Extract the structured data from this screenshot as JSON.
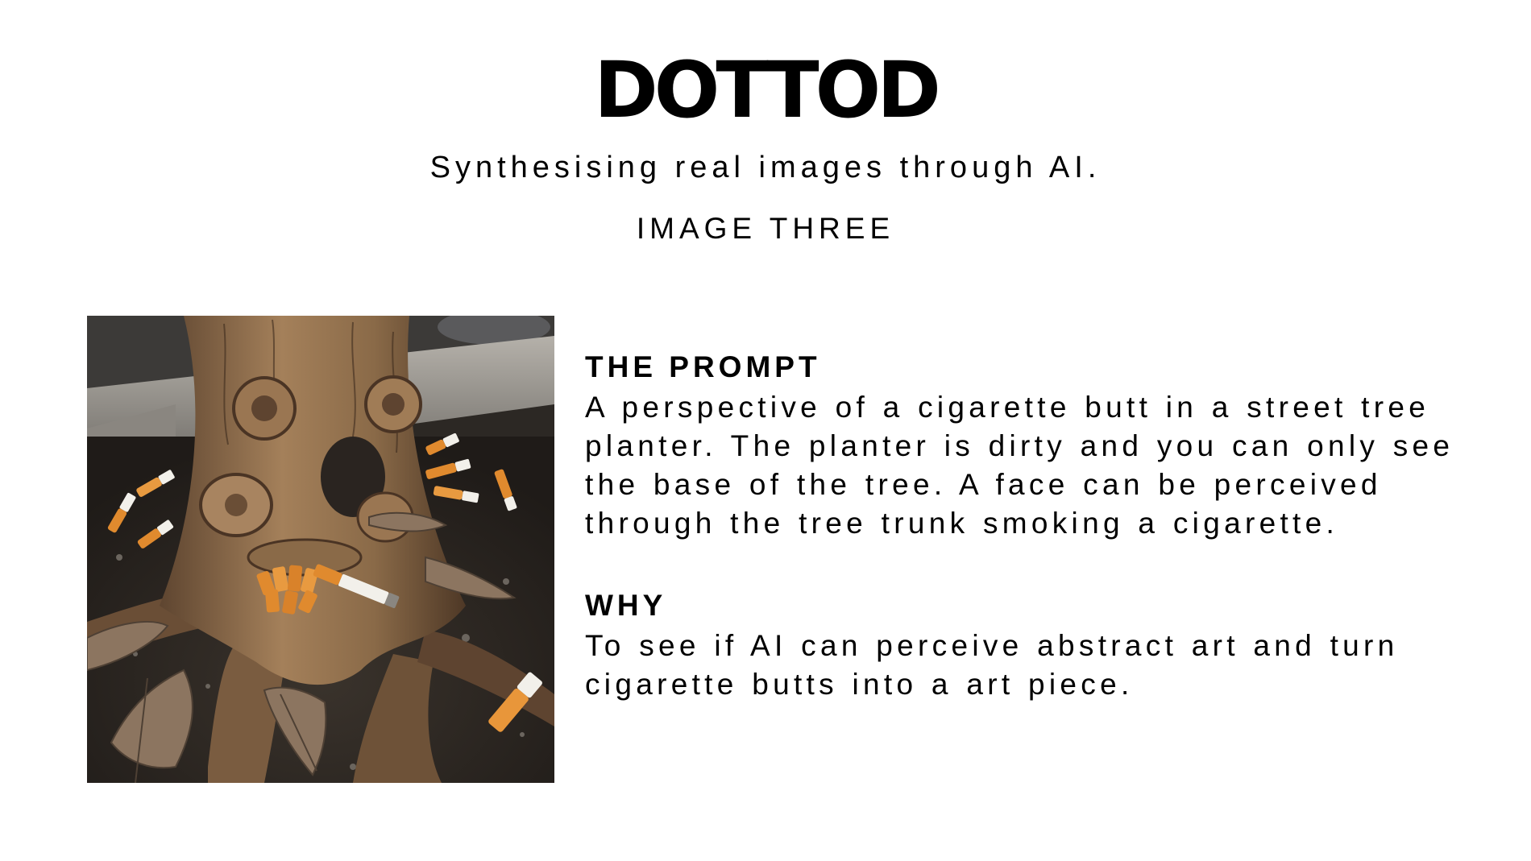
{
  "header": {
    "brand": "DOTTOD",
    "tagline": "Synthesising real images through AI.",
    "image_label": "IMAGE THREE"
  },
  "artwork": {
    "icon": "tree-trunk-cigarette-photo",
    "colors": {
      "soil": "#2f2a25",
      "bark": "#8a6a48",
      "bark_light": "#b08a62",
      "concrete": "#9a9690",
      "filter": "#e08a2e",
      "paper": "#f2f0ea",
      "leaf": "#8c7560"
    }
  },
  "prompt_section": {
    "heading": "THE PROMPT",
    "body": "A perspective of a cigarette butt in a street tree planter. The planter is dirty and you can only see the base of the tree. A face can be perceived through the tree trunk smoking a cigarette."
  },
  "why_section": {
    "heading": "WHY",
    "body": "To see if AI can perceive abstract art and turn cigarette butts into a art piece."
  }
}
